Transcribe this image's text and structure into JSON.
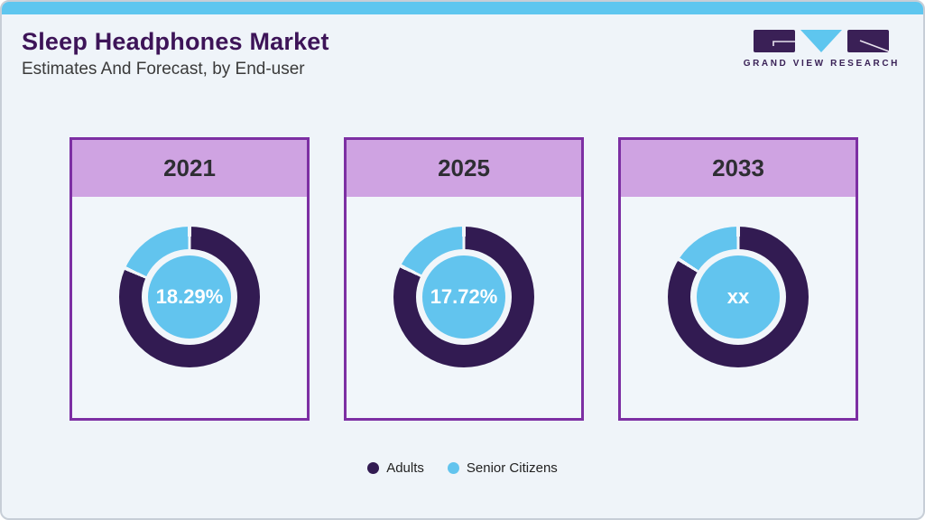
{
  "header": {
    "title": "Sleep Headphones Market",
    "subtitle": "Estimates And Forecast, by End-user",
    "logo_text": "GRAND VIEW RESEARCH"
  },
  "colors": {
    "accent_bar_blue": "#5ec6ef",
    "adults_dark_purple": "#321b52",
    "senior_light_blue": "#62c4ee",
    "card_border_purple": "#7d2fa3",
    "card_header_lilac": "#cfa3e2",
    "title_purple": "#3d1458",
    "page_background": "#eff4f9",
    "slice_separator": "#f1f6fa"
  },
  "chart_data": {
    "type": "pie",
    "subtype": "donut",
    "title": "Sleep Headphones Market Estimates And Forecast, by End-user",
    "legend_position": "bottom",
    "legend": [
      {
        "name": "Adults",
        "color": "#321b52"
      },
      {
        "name": "Senior Citizens",
        "color": "#62c4ee"
      }
    ],
    "charts": [
      {
        "year": "2021",
        "center_label": "18.29%",
        "series": [
          {
            "name": "Adults",
            "value": 81.71
          },
          {
            "name": "Senior Citizens",
            "value": 18.29
          }
        ],
        "senior_arc_pct": 18.29
      },
      {
        "year": "2025",
        "center_label": "17.72%",
        "series": [
          {
            "name": "Adults",
            "value": 82.28
          },
          {
            "name": "Senior Citizens",
            "value": 17.72
          }
        ],
        "senior_arc_pct": 17.72
      },
      {
        "year": "2033",
        "center_label": "xx",
        "series": [
          {
            "name": "Adults",
            "value": "xx"
          },
          {
            "name": "Senior Citizens",
            "value": "xx"
          }
        ],
        "senior_arc_pct": 16
      }
    ]
  }
}
